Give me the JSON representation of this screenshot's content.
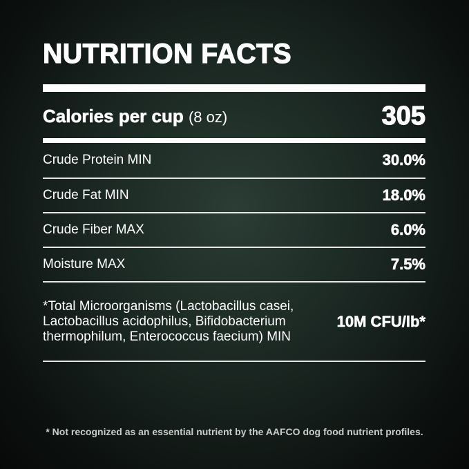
{
  "title": "NUTRITION FACTS",
  "calories": {
    "label": "Calories per cup",
    "unit": "(8 oz)",
    "value": "305"
  },
  "nutrients": [
    {
      "label": "Crude Protein MIN",
      "value": "30.0%"
    },
    {
      "label": "Crude Fat MIN",
      "value": "18.0%"
    },
    {
      "label": "Crude Fiber MAX",
      "value": "6.0%"
    },
    {
      "label": "Moisture MAX",
      "value": "7.5%"
    }
  ],
  "microorganisms": {
    "label": "*Total Microorganisms (Lactobacillus casei, Lactobacillus acidophilus, Bifidobacterium thermophilum, Enterococcus faecium) MIN",
    "value": "10M CFU/lb*"
  },
  "footnote": "* Not recognized as an essential nutrient by the AAFCO dog food nutrient profiles.",
  "colors": {
    "text": "#ffffff",
    "background_center": "#2b3d35",
    "background_edge": "#070908"
  }
}
